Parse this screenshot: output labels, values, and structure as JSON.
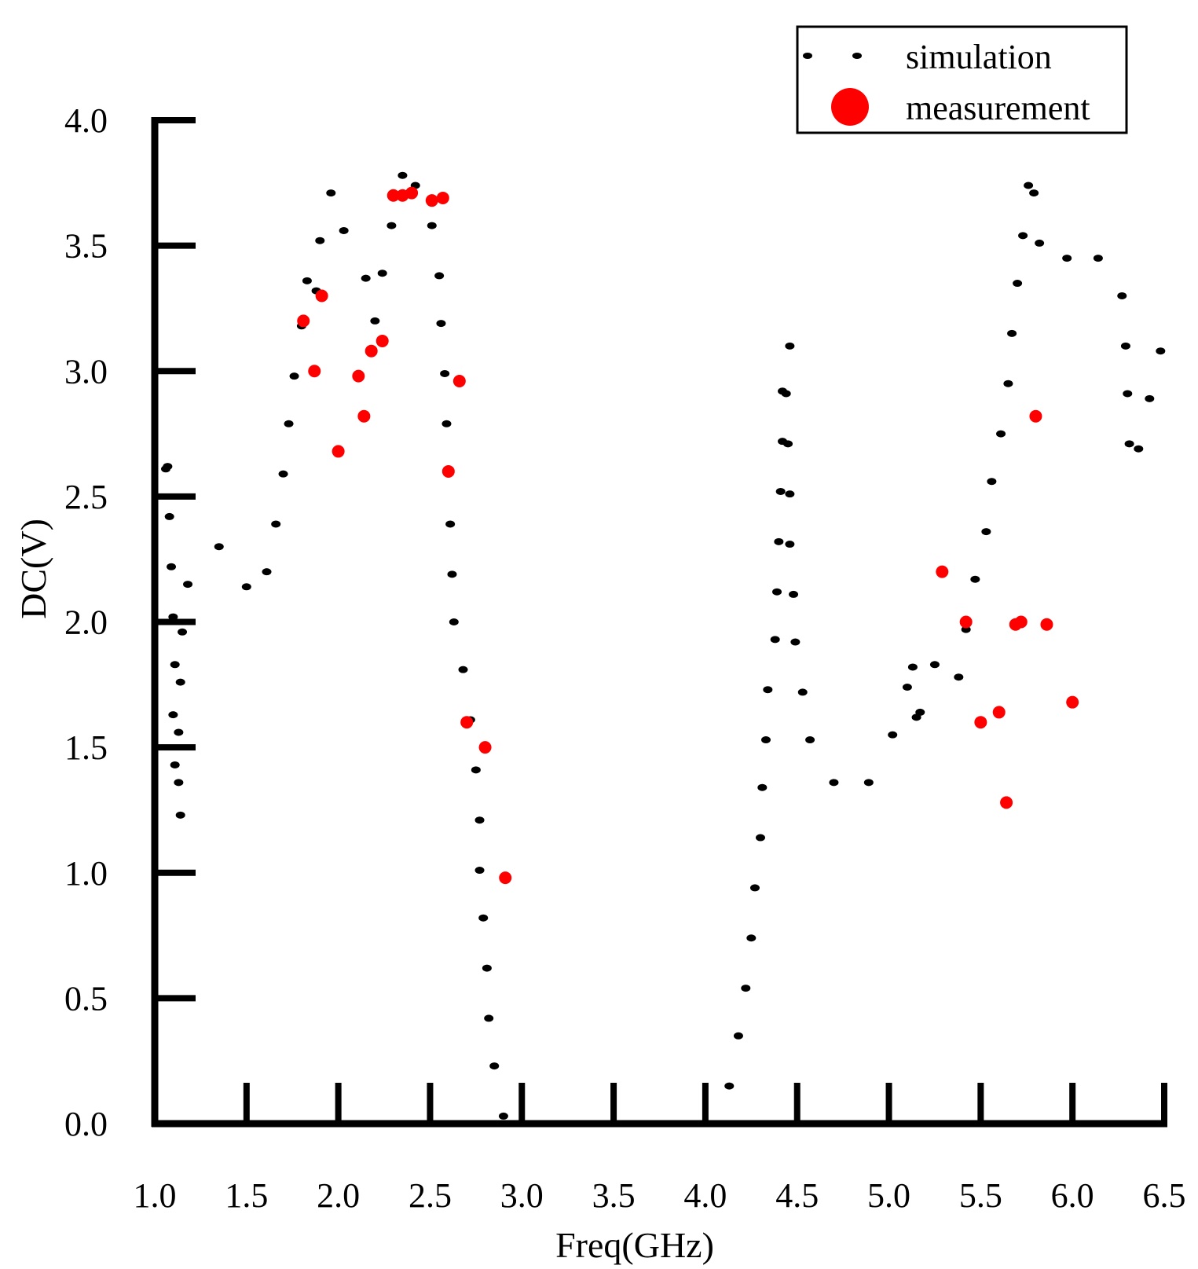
{
  "chart_data": {
    "type": "scatter",
    "title": "",
    "xlabel": "Freq(GHz)",
    "ylabel": "DC(V)",
    "xlim": [
      1.0,
      6.5
    ],
    "ylim": [
      0.0,
      4.0
    ],
    "x_ticks": [
      1.0,
      1.5,
      2.0,
      2.5,
      3.0,
      3.5,
      4.0,
      4.5,
      5.0,
      5.5,
      6.0,
      6.5
    ],
    "x_tick_labels": [
      "1.0",
      "1.5",
      "2.0",
      "2.5",
      "3.0",
      "3.5",
      "4.0",
      "4.5",
      "5.0",
      "5.5",
      "6.0",
      "6.5"
    ],
    "y_ticks": [
      0.0,
      0.5,
      1.0,
      1.5,
      2.0,
      2.5,
      3.0,
      3.5,
      4.0
    ],
    "y_tick_labels": [
      "0.0",
      "0.5",
      "1.0",
      "1.5",
      "2.0",
      "2.5",
      "3.0",
      "3.5",
      "4.0"
    ],
    "grid": false,
    "legend_position": "top-right",
    "series": [
      {
        "name": "simulation",
        "color": "#000000",
        "marker": "small-dot",
        "points": [
          [
            1.06,
            2.61
          ],
          [
            1.07,
            2.62
          ],
          [
            1.08,
            2.42
          ],
          [
            1.09,
            2.22
          ],
          [
            1.1,
            2.02
          ],
          [
            1.11,
            1.83
          ],
          [
            1.1,
            1.63
          ],
          [
            1.11,
            1.43
          ],
          [
            1.13,
            1.36
          ],
          [
            1.14,
            1.23
          ],
          [
            1.13,
            1.56
          ],
          [
            1.14,
            1.76
          ],
          [
            1.15,
            1.96
          ],
          [
            1.18,
            2.15
          ],
          [
            1.35,
            2.3
          ],
          [
            1.5,
            2.14
          ],
          [
            1.61,
            2.2
          ],
          [
            1.66,
            2.39
          ],
          [
            1.7,
            2.59
          ],
          [
            1.73,
            2.79
          ],
          [
            1.76,
            2.98
          ],
          [
            1.8,
            3.18
          ],
          [
            1.83,
            3.36
          ],
          [
            1.88,
            3.32
          ],
          [
            1.9,
            3.52
          ],
          [
            1.96,
            3.71
          ],
          [
            2.03,
            3.56
          ],
          [
            2.15,
            3.37
          ],
          [
            2.2,
            3.2
          ],
          [
            2.24,
            3.39
          ],
          [
            2.29,
            3.58
          ],
          [
            2.35,
            3.78
          ],
          [
            2.42,
            3.74
          ],
          [
            2.51,
            3.58
          ],
          [
            2.55,
            3.38
          ],
          [
            2.56,
            3.19
          ],
          [
            2.58,
            2.99
          ],
          [
            2.59,
            2.79
          ],
          [
            2.61,
            2.39
          ],
          [
            2.62,
            2.19
          ],
          [
            2.63,
            2.0
          ],
          [
            2.68,
            1.81
          ],
          [
            2.72,
            1.61
          ],
          [
            2.75,
            1.41
          ],
          [
            2.77,
            1.21
          ],
          [
            2.77,
            1.01
          ],
          [
            2.79,
            0.82
          ],
          [
            2.81,
            0.62
          ],
          [
            2.82,
            0.42
          ],
          [
            2.85,
            0.23
          ],
          [
            2.9,
            0.03
          ],
          [
            4.13,
            0.15
          ],
          [
            4.18,
            0.35
          ],
          [
            4.22,
            0.54
          ],
          [
            4.25,
            0.74
          ],
          [
            4.27,
            0.94
          ],
          [
            4.3,
            1.14
          ],
          [
            4.31,
            1.34
          ],
          [
            4.33,
            1.53
          ],
          [
            4.34,
            1.73
          ],
          [
            4.38,
            1.93
          ],
          [
            4.39,
            2.12
          ],
          [
            4.4,
            2.32
          ],
          [
            4.41,
            2.52
          ],
          [
            4.42,
            2.72
          ],
          [
            4.42,
            2.92
          ],
          [
            4.44,
            2.91
          ],
          [
            4.45,
            2.71
          ],
          [
            4.46,
            2.51
          ],
          [
            4.46,
            2.31
          ],
          [
            4.48,
            2.11
          ],
          [
            4.49,
            1.92
          ],
          [
            4.53,
            1.72
          ],
          [
            4.57,
            1.53
          ],
          [
            4.7,
            1.36
          ],
          [
            4.89,
            1.36
          ],
          [
            4.46,
            3.1
          ],
          [
            5.02,
            1.55
          ],
          [
            5.1,
            1.74
          ],
          [
            5.13,
            1.82
          ],
          [
            5.15,
            1.62
          ],
          [
            5.17,
            1.64
          ],
          [
            5.25,
            1.83
          ],
          [
            5.38,
            1.78
          ],
          [
            5.42,
            1.97
          ],
          [
            5.47,
            2.17
          ],
          [
            5.53,
            2.36
          ],
          [
            5.56,
            2.56
          ],
          [
            5.61,
            2.75
          ],
          [
            5.65,
            2.95
          ],
          [
            5.67,
            3.15
          ],
          [
            5.7,
            3.35
          ],
          [
            5.73,
            3.54
          ],
          [
            5.76,
            3.74
          ],
          [
            5.79,
            3.71
          ],
          [
            5.82,
            3.51
          ],
          [
            5.97,
            3.45
          ],
          [
            6.14,
            3.45
          ],
          [
            6.27,
            3.3
          ],
          [
            6.29,
            3.1
          ],
          [
            6.3,
            2.91
          ],
          [
            6.31,
            2.71
          ],
          [
            6.36,
            2.69
          ],
          [
            6.42,
            2.89
          ],
          [
            6.48,
            3.08
          ]
        ]
      },
      {
        "name": "measurement",
        "color": "#ff0000",
        "marker": "large-dot",
        "points": [
          [
            1.81,
            3.2
          ],
          [
            1.87,
            3.0
          ],
          [
            1.91,
            3.3
          ],
          [
            2.0,
            2.68
          ],
          [
            2.11,
            2.98
          ],
          [
            2.14,
            2.82
          ],
          [
            2.18,
            3.08
          ],
          [
            2.24,
            3.12
          ],
          [
            2.3,
            3.7
          ],
          [
            2.35,
            3.7
          ],
          [
            2.4,
            3.71
          ],
          [
            2.51,
            3.68
          ],
          [
            2.57,
            3.69
          ],
          [
            2.6,
            2.6
          ],
          [
            2.66,
            2.96
          ],
          [
            2.7,
            1.6
          ],
          [
            2.8,
            1.5
          ],
          [
            2.91,
            0.98
          ],
          [
            5.29,
            2.2
          ],
          [
            5.42,
            2.0
          ],
          [
            5.5,
            1.6
          ],
          [
            5.6,
            1.64
          ],
          [
            5.64,
            1.28
          ],
          [
            5.69,
            1.99
          ],
          [
            5.72,
            2.0
          ],
          [
            5.8,
            2.82
          ],
          [
            5.86,
            1.99
          ],
          [
            6.0,
            1.68
          ]
        ]
      }
    ]
  }
}
